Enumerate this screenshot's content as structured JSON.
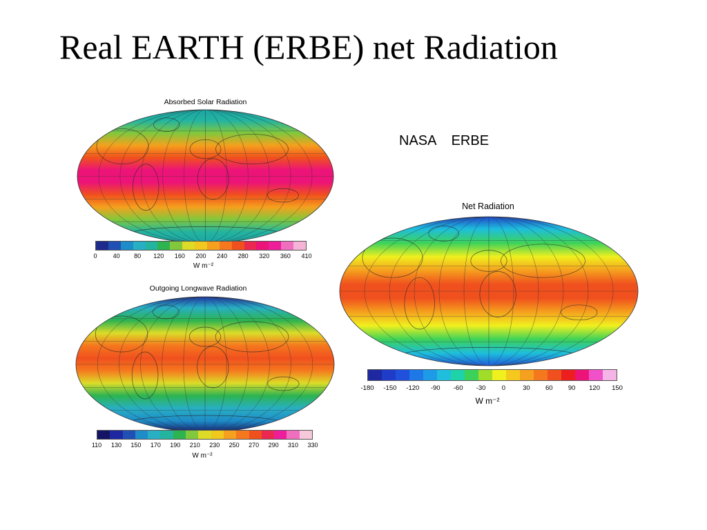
{
  "slide": {
    "title": "Real EARTH (ERBE) net Radiation"
  },
  "credit": "NASA    ERBE",
  "panels": {
    "asr": {
      "title": "Absorbed Solar Radiation",
      "ticks": [
        "0",
        "40",
        "80",
        "120",
        "160",
        "200",
        "240",
        "280",
        "320",
        "360",
        "410"
      ],
      "colors": [
        "#1e2a8c",
        "#2050b4",
        "#1e8cc8",
        "#28afc3",
        "#23b4a0",
        "#2db450",
        "#82c83c",
        "#dcdc28",
        "#f0c81e",
        "#f5a01e",
        "#f5781e",
        "#f0501e",
        "#ec2850",
        "#ec1478",
        "#ee1e9b",
        "#f06ebe",
        "#f5b4d7"
      ],
      "unit": "W m⁻²",
      "fill_stops": [
        "#19a3a5",
        "#23b4a0",
        "#82c83c",
        "#f5a01e",
        "#f0501e",
        "#ec1478",
        "#ec1478",
        "#f0501e",
        "#f5a01e",
        "#82c83c",
        "#23b4a0",
        "#19a3a5"
      ]
    },
    "olr": {
      "title": "Outgoing Longwave Radiation",
      "ticks": [
        "110",
        "130",
        "150",
        "170",
        "190",
        "210",
        "230",
        "250",
        "270",
        "290",
        "310",
        "330"
      ],
      "colors": [
        "#141464",
        "#1e28a0",
        "#2050b4",
        "#1e8cc8",
        "#28afc3",
        "#23b4a0",
        "#2db450",
        "#82c83c",
        "#dcdc28",
        "#f0c81e",
        "#f5a01e",
        "#f5781e",
        "#f0501e",
        "#ec2850",
        "#ee1e9b",
        "#f06ebe",
        "#f5c8dc"
      ],
      "unit": "W m⁻²",
      "fill_stops": [
        "#1e28a0",
        "#28afc3",
        "#2db450",
        "#dcdc28",
        "#f5781e",
        "#f0501e",
        "#f5781e",
        "#dcdc28",
        "#2db450",
        "#28afc3",
        "#1e8cc8",
        "#141464"
      ]
    },
    "net": {
      "title": "Net Radiation",
      "ticks": [
        "-180",
        "-150",
        "-120",
        "-90",
        "-60",
        "-30",
        "0",
        "30",
        "60",
        "90",
        "120",
        "150"
      ],
      "colors": [
        "#1e28a0",
        "#1e3cc8",
        "#2050dc",
        "#1e78e6",
        "#1e9be6",
        "#1ebedc",
        "#1ed2aa",
        "#3cd25a",
        "#a0dc28",
        "#f0f01e",
        "#f5c81e",
        "#f5a01e",
        "#f5781e",
        "#f0501e",
        "#ec1e1e",
        "#ec1478",
        "#f050c8",
        "#f5b4e6"
      ],
      "unit": "W m⁻²",
      "fill_stops": [
        "#1e3cc8",
        "#1ebedc",
        "#3cd25a",
        "#f0f01e",
        "#f5a01e",
        "#f0501e",
        "#f0501e",
        "#f5a01e",
        "#f0f01e",
        "#3cd25a",
        "#1ebedc",
        "#1e50dc"
      ]
    }
  }
}
